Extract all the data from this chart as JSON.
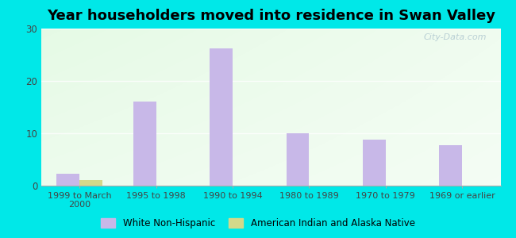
{
  "title": "Year householders moved into residence in Swan Valley",
  "categories": [
    "1999 to March\n2000",
    "1995 to 1998",
    "1990 to 1994",
    "1980 to 1989",
    "1970 to 1979",
    "1969 or earlier"
  ],
  "white_non_hispanic": [
    2.3,
    16.0,
    26.2,
    10.0,
    8.8,
    7.7
  ],
  "american_indian": [
    1.0,
    0,
    0,
    0,
    0,
    0
  ],
  "white_color": "#c8b8e8",
  "indian_color": "#d4d98a",
  "background_outer": "#00e8e8",
  "ylim": [
    0,
    30
  ],
  "yticks": [
    0,
    10,
    20,
    30
  ],
  "bar_width": 0.3,
  "legend_white": "White Non-Hispanic",
  "legend_indian": "American Indian and Alaska Native",
  "title_fontsize": 13,
  "watermark": "City-Data.com"
}
